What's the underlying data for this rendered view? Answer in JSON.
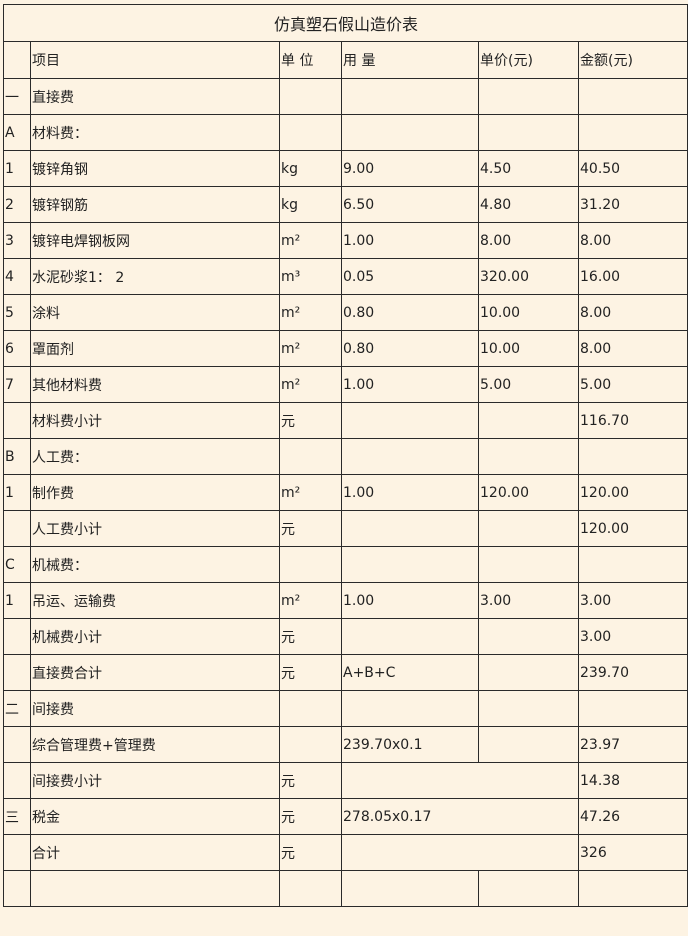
{
  "title": "仿真塑石假山造价表",
  "headers": [
    "",
    "项目",
    "单 位",
    "用 量",
    "单价(元)",
    "金额(元)"
  ],
  "rows": [
    {
      "no": "一",
      "item": "直接费",
      "unit": "",
      "qty": "",
      "price": "",
      "amount": ""
    },
    {
      "no": "A",
      "item": "材料费：",
      "unit": "",
      "qty": "",
      "price": "",
      "amount": ""
    },
    {
      "no": "1",
      "item": "镀锌角钢",
      "unit": "kg",
      "qty": "9.00",
      "price": "4.50",
      "amount": "40.50"
    },
    {
      "no": "2",
      "item": "镀锌钢筋",
      "unit": "kg",
      "qty": "6.50",
      "price": "4.80",
      "amount": "31.20"
    },
    {
      "no": "3",
      "item": "镀锌电焊钢板网",
      "unit": "m²",
      "qty": "1.00",
      "price": "8.00",
      "amount": "8.00"
    },
    {
      "no": "4",
      "item": "水泥砂浆1： 2",
      "unit": "m³",
      "qty": "0.05",
      "price": "320.00",
      "amount": "16.00"
    },
    {
      "no": "5",
      "item": "涂料",
      "unit": "m²",
      "qty": "0.80",
      "price": "10.00",
      "amount": "8.00"
    },
    {
      "no": "6",
      "item": "罩面剂",
      "unit": "m²",
      "qty": "0.80",
      "price": "10.00",
      "amount": "8.00"
    },
    {
      "no": "7",
      "item": "其他材料费",
      "unit": "m²",
      "qty": "1.00",
      "price": "5.00",
      "amount": "5.00"
    },
    {
      "no": "",
      "item": "材料费小计",
      "unit": "元",
      "qty": "",
      "price": "",
      "amount": "116.70"
    },
    {
      "no": "B",
      "item": "人工费：",
      "unit": "",
      "qty": "",
      "price": "",
      "amount": ""
    },
    {
      "no": "1",
      "item": "制作费",
      "unit": "m²",
      "qty": "1.00",
      "price": "120.00",
      "amount": "120.00"
    },
    {
      "no": "",
      "item": "人工费小计",
      "unit": "元",
      "qty": "",
      "price": "",
      "amount": "120.00"
    },
    {
      "no": "C",
      "item": "机械费：",
      "unit": "",
      "qty": "",
      "price": "",
      "amount": ""
    },
    {
      "no": "1",
      "item": "吊运、运输费",
      "unit": "m²",
      "qty": "1.00",
      "price": "3.00",
      "amount": "3.00"
    },
    {
      "no": "",
      "item": "机械费小计",
      "unit": "元",
      "qty": "",
      "price": "",
      "amount": "3.00"
    },
    {
      "no": "",
      "item": "直接费合计",
      "unit": "元",
      "qty": "A+B+C",
      "price": "",
      "amount": "239.70"
    },
    {
      "no": "二",
      "item": "间接费",
      "unit": "",
      "qty": "",
      "price": "",
      "amount": ""
    },
    {
      "no": "",
      "item": "综合管理费+管理费",
      "unit": "",
      "qty": "239.70x0.1",
      "price": "",
      "amount": "23.97"
    },
    {
      "no": "",
      "item": "间接费小计",
      "unit": "元",
      "qty": "",
      "merged": true,
      "amount": "14.38"
    },
    {
      "no": "三",
      "item": "税金",
      "unit": "元",
      "qty": "278.05x0.17",
      "merged": true,
      "amount": "47.26"
    },
    {
      "no": "",
      "item": "合计",
      "unit": "元",
      "qty": "",
      "merged": true,
      "amount": "326"
    },
    {
      "no": "",
      "item": "",
      "unit": "",
      "qty": "",
      "price": "",
      "amount": ""
    }
  ]
}
